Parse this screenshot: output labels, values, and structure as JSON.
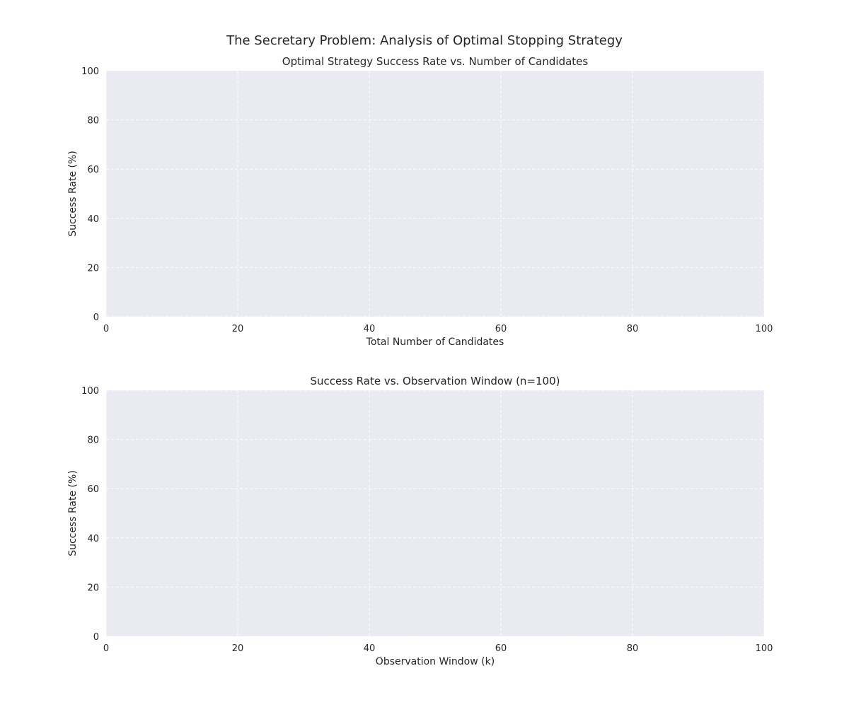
{
  "figure": {
    "title": "The Secretary Problem: Analysis of Optimal Stopping Strategy"
  },
  "chart_data": [
    {
      "type": "line",
      "title": "Optimal Strategy Success Rate vs. Number of Candidates",
      "xlabel": "Total Number of Candidates",
      "ylabel": "Success Rate (%)",
      "xlim": [
        0,
        100
      ],
      "ylim": [
        0,
        100
      ],
      "xticks": [
        "0",
        "20",
        "40",
        "60",
        "80",
        "100"
      ],
      "yticks": [
        "0",
        "20",
        "40",
        "60",
        "80",
        "100"
      ],
      "grid": true,
      "series": []
    },
    {
      "type": "line",
      "title": "Success Rate vs. Observation Window (n=100)",
      "xlabel": "Observation Window (k)",
      "ylabel": "Success Rate (%)",
      "xlim": [
        0,
        100
      ],
      "ylim": [
        0,
        100
      ],
      "xticks": [
        "0",
        "20",
        "40",
        "60",
        "80",
        "100"
      ],
      "yticks": [
        "0",
        "20",
        "40",
        "60",
        "80",
        "100"
      ],
      "grid": true,
      "series": []
    }
  ],
  "colors": {
    "plot_background": "#eaeaf2",
    "grid": "#ffffff",
    "text": "#262626"
  }
}
